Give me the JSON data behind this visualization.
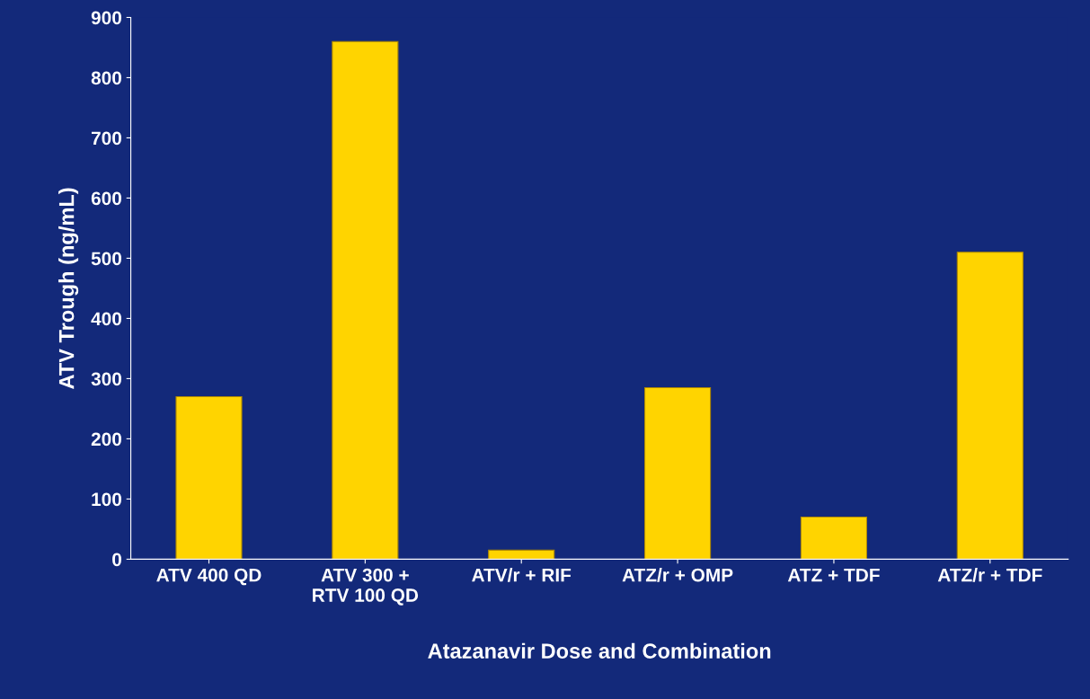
{
  "chart_data": {
    "type": "bar",
    "xlabel": "Atazanavir Dose and Combination",
    "ylabel": "ATV Trough (ng/mL)",
    "categories": [
      "ATV 400 QD",
      "ATV 300 +\nRTV 100 QD",
      "ATV/r + RIF",
      "ATZ/r + OMP",
      "ATZ + TDF",
      "ATZ/r + TDF"
    ],
    "values": [
      270,
      860,
      15,
      285,
      70,
      510
    ],
    "color": "#ffd400",
    "ylim": [
      0,
      900
    ],
    "yticks": [
      0,
      100,
      200,
      300,
      400,
      500,
      600,
      700,
      800,
      900
    ],
    "grid": false,
    "legend": false
  }
}
